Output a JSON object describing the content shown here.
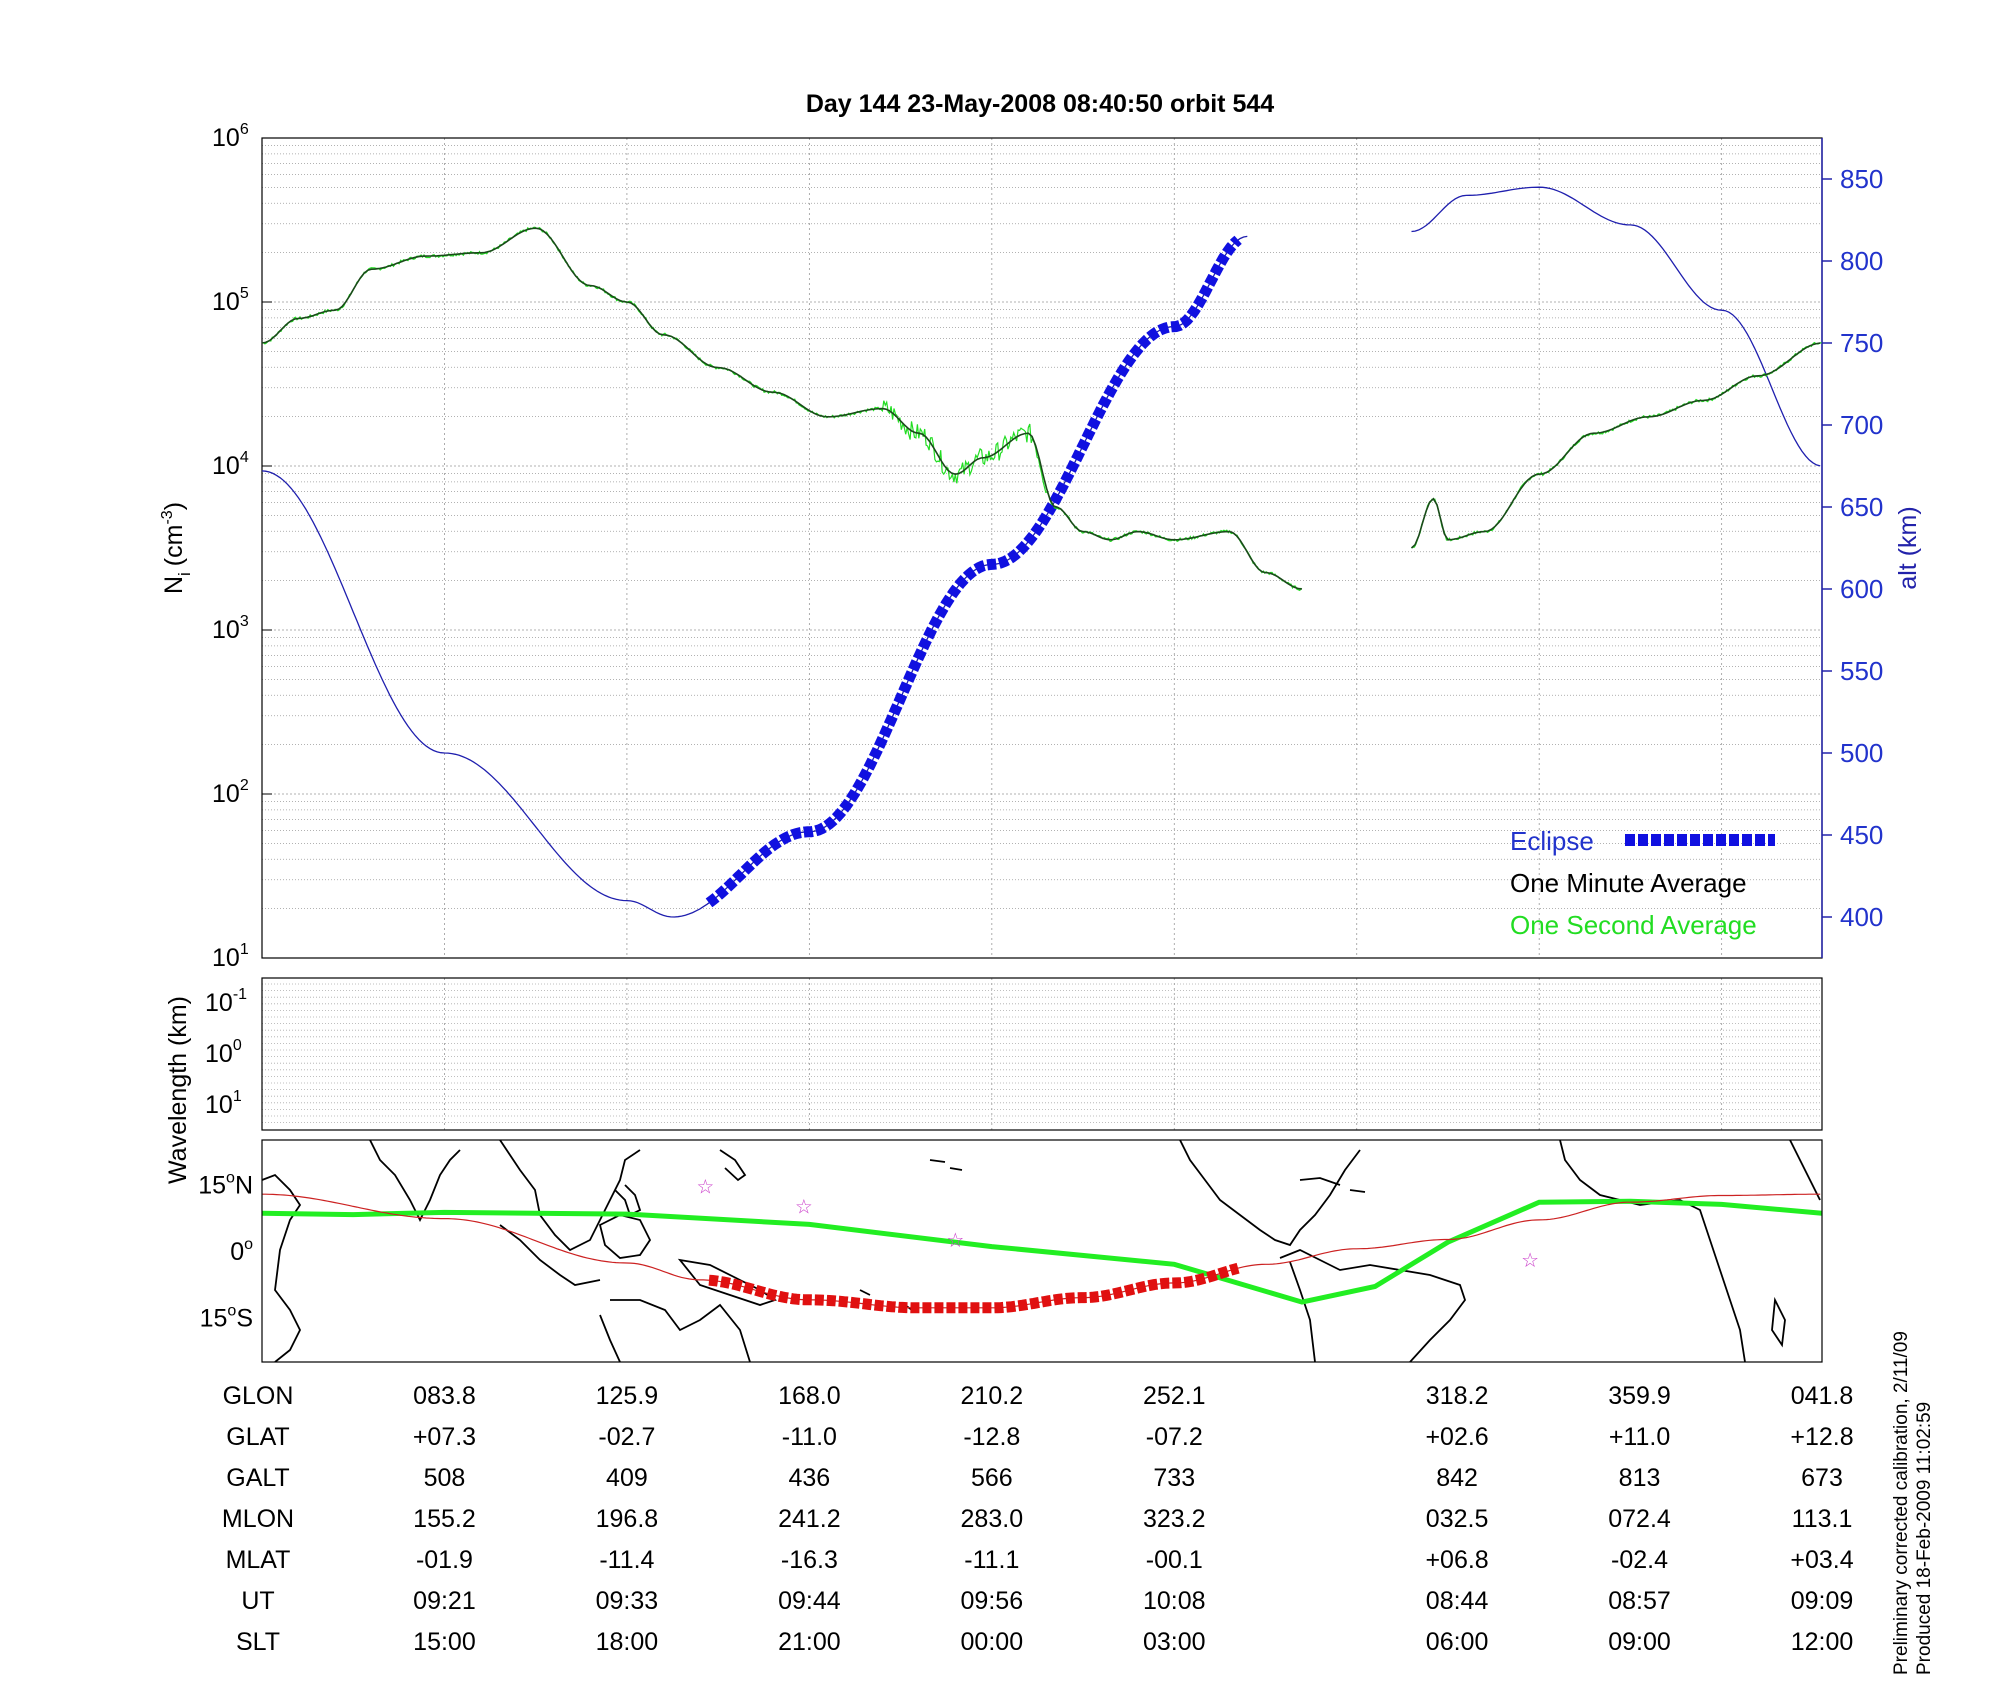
{
  "chart_data": {
    "type": "line",
    "title": "Day 144  23-May-2008 08:40:50   orbit 544",
    "top_panel": {
      "ylabel_left": "N",
      "ylabel_left_sub": "i",
      "ylabel_left_unit": "(cm",
      "ylabel_left_unit_exp": "-3",
      "ylabel_left_unit_close": ")",
      "ylabel_right": "alt (km)",
      "y_log_range": [
        1,
        6
      ],
      "y_ticks": [
        {
          "base": "10",
          "exp": "1",
          "value": 1
        },
        {
          "base": "10",
          "exp": "2",
          "value": 2
        },
        {
          "base": "10",
          "exp": "3",
          "value": 3
        },
        {
          "base": "10",
          "exp": "4",
          "value": 4
        },
        {
          "base": "10",
          "exp": "5",
          "value": 5
        },
        {
          "base": "10",
          "exp": "6",
          "value": 6
        }
      ],
      "y2_range": [
        375,
        875
      ],
      "y2_ticks": [
        "400",
        "450",
        "500",
        "550",
        "600",
        "650",
        "700",
        "750",
        "800",
        "850"
      ],
      "x_range": [
        0,
        8.55
      ],
      "altitude": {
        "name": "alt (km)",
        "color": "#1f1fae",
        "segment1": {
          "x": [
            0,
            1.0,
            2.0,
            2.25,
            3.0,
            4.0,
            5.0,
            5.4
          ],
          "y": [
            672,
            500,
            410,
            400,
            452,
            615,
            760,
            815
          ]
        },
        "segment2": {
          "x": [
            6.3,
            6.6,
            7.0,
            7.5,
            8.0,
            8.55
          ],
          "y": [
            818,
            840,
            845,
            822,
            770,
            675
          ]
        }
      },
      "eclipse": {
        "name": "Eclipse",
        "color": "#1010e0",
        "x_start": 2.45,
        "x_end": 5.35
      },
      "one_minute_avg": {
        "name": "One Minute Average",
        "color": "#1a4a1a",
        "segment1": {
          "x": [
            0,
            0.2,
            0.4,
            0.6,
            0.9,
            1.2,
            1.5,
            1.8,
            2.0,
            2.2,
            2.5,
            2.8,
            3.1,
            3.4,
            3.6,
            3.8,
            3.95,
            4.2,
            4.35,
            4.5,
            4.65,
            4.8,
            5.0,
            5.3,
            5.5,
            5.7
          ],
          "y": [
            4.75,
            4.9,
            4.95,
            5.2,
            5.28,
            5.3,
            5.45,
            5.1,
            5.0,
            4.8,
            4.6,
            4.45,
            4.3,
            4.35,
            4.2,
            3.95,
            4.05,
            4.2,
            3.75,
            3.6,
            3.55,
            3.6,
            3.55,
            3.6,
            3.35,
            3.25
          ]
        },
        "segment2": {
          "x": [
            6.3,
            6.42,
            6.5,
            6.7,
            7.0,
            7.3,
            7.6,
            7.9,
            8.2,
            8.55
          ],
          "y": [
            3.5,
            3.8,
            3.55,
            3.6,
            3.95,
            4.2,
            4.3,
            4.4,
            4.55,
            4.75
          ]
        }
      },
      "one_second_avg": {
        "name": "One Second Average",
        "color": "#22dd22"
      },
      "legend_position": "bottom-right"
    },
    "middle_panel": {
      "ylabel": "Wavelength (km)",
      "y_ticks": [
        {
          "base": "10",
          "exp": "-1"
        },
        {
          "base": "10",
          "exp": "0"
        },
        {
          "base": "10",
          "exp": "1"
        }
      ]
    },
    "map_panel": {
      "lat_ticks": [
        {
          "label": "15",
          "deg": "o",
          "hemi": "N",
          "value": 15
        },
        {
          "label": "0",
          "deg": "o",
          "hemi": "",
          "value": 0
        },
        {
          "label": "15",
          "deg": "o",
          "hemi": "S",
          "value": -15
        }
      ],
      "lat_range": [
        -25,
        25
      ],
      "magnetic_equator": {
        "color": "#22ee22",
        "x": [
          0,
          0.5,
          1.0,
          2.0,
          3.0,
          4.0,
          5.0,
          5.7,
          6.1,
          6.5,
          7.0,
          7.5,
          8.0,
          8.55
        ],
        "lat": [
          8.5,
          8.2,
          8.7,
          8.3,
          6.0,
          1.0,
          -3.0,
          -11.5,
          -8.0,
          2.0,
          11.0,
          11.2,
          10.5,
          8.5
        ]
      },
      "orbit_track": {
        "color": "#cc2222",
        "x": [
          0,
          1.0,
          2.0,
          2.4,
          3.0,
          3.6,
          4.0,
          4.5,
          5.0,
          5.5,
          6.0,
          6.5,
          7.0,
          7.5,
          8.0,
          8.55
        ],
        "lat": [
          12.8,
          7.3,
          -2.7,
          -6.5,
          -11.0,
          -12.8,
          -12.8,
          -10.5,
          -7.2,
          -3.0,
          0.5,
          2.6,
          7.0,
          11.0,
          12.5,
          12.8
        ]
      },
      "eclipse_track": {
        "color": "#e01010",
        "x_start": 2.45,
        "x_end": 5.35
      },
      "stars": [
        {
          "x": 2.43,
          "lat": 14.5
        },
        {
          "x": 2.97,
          "lat": 10.0
        },
        {
          "x": 3.8,
          "lat": 2.5
        },
        {
          "x": 6.95,
          "lat": -2.0
        }
      ],
      "star_color": "#cc44cc"
    },
    "table": {
      "row_labels": [
        "GLON",
        "GLAT",
        "GALT",
        "MLON",
        "MLAT",
        "UT",
        "SLT"
      ],
      "columns": [
        {
          "x": 1,
          "values": [
            "083.8",
            "+07.3",
            "508",
            "155.2",
            "-01.9",
            "09:21",
            "15:00"
          ]
        },
        {
          "x": 2,
          "values": [
            "125.9",
            "-02.7",
            "409",
            "196.8",
            "-11.4",
            "09:33",
            "18:00"
          ]
        },
        {
          "x": 3,
          "values": [
            "168.0",
            "-11.0",
            "436",
            "241.2",
            "-16.3",
            "09:44",
            "21:00"
          ]
        },
        {
          "x": 4,
          "values": [
            "210.2",
            "-12.8",
            "566",
            "283.0",
            "-11.1",
            "09:56",
            "00:00"
          ]
        },
        {
          "x": 5,
          "values": [
            "252.1",
            "-07.2",
            "733",
            "323.2",
            "-00.1",
            "10:08",
            "03:00"
          ]
        },
        {
          "x": 6.55,
          "values": [
            "318.2",
            "+02.6",
            "842",
            "032.5",
            "+06.8",
            "08:44",
            "06:00"
          ]
        },
        {
          "x": 7.55,
          "values": [
            "359.9",
            "+11.0",
            "813",
            "072.4",
            "-02.4",
            "08:57",
            "09:00"
          ]
        },
        {
          "x": 8.55,
          "values": [
            "041.8",
            "+12.8",
            "673",
            "113.1",
            "+03.4",
            "09:09",
            "12:00"
          ]
        }
      ]
    },
    "footnote": {
      "line1": "Preliminary corrected calibration, 2/11/09",
      "line2": "Produced 18-Feb-2009 11:02:59"
    }
  }
}
